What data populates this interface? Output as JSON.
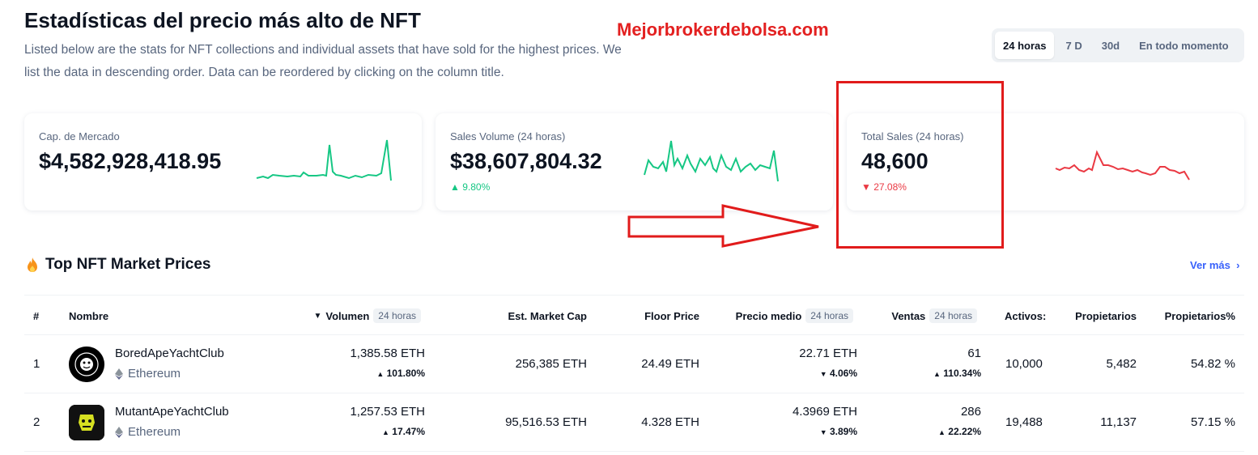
{
  "header": {
    "title": "Estadísticas del precio más alto de NFT",
    "description": "Listed below are the stats for NFT collections and individual assets that have sold for the highest prices. We list the data in descending order. Data can be reordered by clicking on the column title.",
    "watermark": "Mejorbrokerdebolsa.com"
  },
  "range_tabs": [
    {
      "label": "24 horas",
      "active": true
    },
    {
      "label": "7 D",
      "active": false
    },
    {
      "label": "30d",
      "active": false
    },
    {
      "label": "En todo momento",
      "active": false
    }
  ],
  "stats": {
    "market_cap": {
      "label": "Cap. de Mercado",
      "value": "$4,582,928,418.95",
      "color": "#16c784"
    },
    "sales_volume": {
      "label": "Sales Volume (24 horas)",
      "value": "$38,607,804.32",
      "change": "9.80%",
      "direction": "up",
      "color": "#16c784"
    },
    "total_sales": {
      "label": "Total Sales (24 horas)",
      "value": "48,600",
      "change": "27.08%",
      "direction": "down",
      "color": "#ea3943"
    }
  },
  "section": {
    "title": "Top NFT Market Prices",
    "icon": "fire-icon",
    "see_more": "Ver más"
  },
  "table": {
    "columns": {
      "rank": "#",
      "name": "Nombre",
      "volume": "Volumen",
      "volume_period": "24 horas",
      "market_cap": "Est. Market Cap",
      "floor": "Floor Price",
      "avg_price": "Precio medio",
      "avg_period": "24 horas",
      "sales": "Ventas",
      "sales_period": "24 horas",
      "assets": "Activos:",
      "owners": "Propietarios",
      "owners_pct": "Propietarios%"
    },
    "rows": [
      {
        "rank": "1",
        "name": "BoredApeYachtClub",
        "chain": "Ethereum",
        "volume": "1,385.58 ETH",
        "volume_change": "101.80%",
        "volume_dir": "up",
        "market_cap": "256,385 ETH",
        "floor": "24.49 ETH",
        "avg_price": "22.71 ETH",
        "avg_change": "4.06%",
        "avg_dir": "down",
        "sales": "61",
        "sales_change": "110.34%",
        "sales_dir": "up",
        "assets": "10,000",
        "owners": "5,482",
        "owners_pct": "54.82 %"
      },
      {
        "rank": "2",
        "name": "MutantApeYachtClub",
        "chain": "Ethereum",
        "volume": "1,257.53 ETH",
        "volume_change": "17.47%",
        "volume_dir": "up",
        "market_cap": "95,516.53 ETH",
        "floor": "4.328 ETH",
        "avg_price": "4.3969 ETH",
        "avg_change": "3.89%",
        "avg_dir": "down",
        "sales": "286",
        "sales_change": "22.22%",
        "sales_dir": "up",
        "assets": "19,488",
        "owners": "11,137",
        "owners_pct": "57.15 %"
      }
    ]
  }
}
